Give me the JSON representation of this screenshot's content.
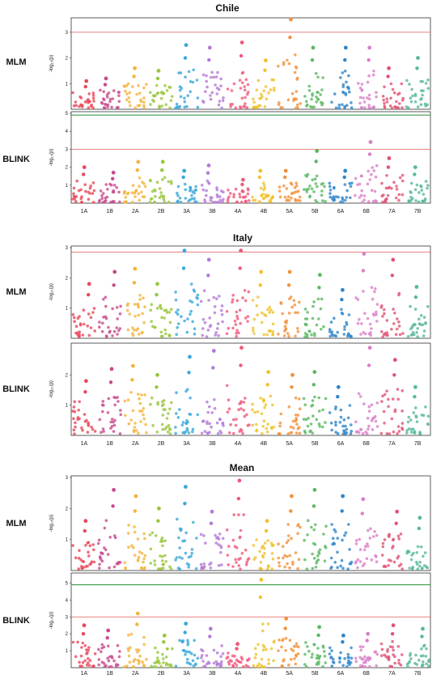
{
  "chromosomes": [
    "1A",
    "1B",
    "2A",
    "2B",
    "3A",
    "3B",
    "4A",
    "4B",
    "5A",
    "5B",
    "6A",
    "6B",
    "7A",
    "7B"
  ],
  "ylabel": "-log₁₀(p)",
  "colors": {
    "palette": [
      "#e8495a",
      "#c84a8c",
      "#f5b33a",
      "#9ac53e",
      "#3aa7d9",
      "#b37ad6",
      "#ef5a7a",
      "#f0c22e",
      "#f2913c",
      "#5bb862",
      "#2e86c9",
      "#d97fc9",
      "#e05474",
      "#58b89a"
    ],
    "threshold_red": "#e05a5a",
    "threshold_green": "#3a9a4a",
    "frame": "#333333"
  },
  "chart_data": [
    {
      "type": "scatter",
      "title": "Chile",
      "panels": [
        {
          "method": "MLM",
          "ylim": [
            0,
            3.5
          ],
          "yticks": [
            1,
            2,
            3
          ],
          "thresholds": [
            {
              "y": 3.0,
              "color": "red"
            }
          ],
          "peaks": [
            1.1,
            1.2,
            1.6,
            1.5,
            2.5,
            2.4,
            2.6,
            1.9,
            3.5,
            2.4,
            2.4,
            2.4,
            1.6,
            2.0
          ]
        },
        {
          "method": "BLINK",
          "ylim": [
            0,
            5
          ],
          "yticks": [
            1,
            2,
            3,
            4,
            5
          ],
          "thresholds": [
            {
              "y": 3.0,
              "color": "red"
            },
            {
              "y": 4.9,
              "color": "green"
            }
          ],
          "peaks": [
            2.0,
            1.7,
            2.3,
            2.3,
            1.8,
            2.1,
            1.3,
            1.8,
            1.8,
            2.9,
            1.8,
            3.4,
            2.5,
            2.0
          ]
        }
      ]
    },
    {
      "type": "scatter",
      "title": "Italy",
      "panels": [
        {
          "method": "MLM",
          "ylim": [
            0,
            3.0
          ],
          "yticks": [
            1,
            2,
            3
          ],
          "thresholds": [
            {
              "y": 2.85,
              "color": "red"
            }
          ],
          "peaks": [
            1.8,
            2.2,
            2.3,
            1.8,
            2.9,
            2.6,
            2.9,
            2.2,
            2.2,
            2.1,
            1.6,
            2.8,
            2.6,
            1.7
          ]
        },
        {
          "method": "BLINK",
          "ylim": [
            0,
            3.0
          ],
          "yticks": [
            1,
            2
          ],
          "thresholds": [],
          "peaks": [
            1.8,
            2.2,
            2.3,
            2.0,
            2.6,
            2.8,
            2.9,
            2.1,
            2.0,
            2.1,
            1.6,
            2.9,
            2.5,
            1.6
          ]
        }
      ]
    },
    {
      "type": "scatter",
      "title": "Mean",
      "panels": [
        {
          "method": "MLM",
          "ylim": [
            0,
            3.0
          ],
          "yticks": [
            1,
            2,
            3
          ],
          "thresholds": [],
          "peaks": [
            1.6,
            2.6,
            2.4,
            2.0,
            2.7,
            1.9,
            2.9,
            1.6,
            2.4,
            2.6,
            2.4,
            2.3,
            1.9,
            1.7
          ]
        },
        {
          "method": "BLINK",
          "ylim": [
            0,
            5.5
          ],
          "yticks": [
            1,
            2,
            3,
            4,
            5
          ],
          "thresholds": [
            {
              "y": 3.0,
              "color": "red"
            },
            {
              "y": 4.9,
              "color": "green"
            }
          ],
          "peaks": [
            2.5,
            2.2,
            3.2,
            1.9,
            2.6,
            2.3,
            1.4,
            5.2,
            2.9,
            2.4,
            1.9,
            2.0,
            2.5,
            2.3
          ]
        }
      ]
    }
  ]
}
